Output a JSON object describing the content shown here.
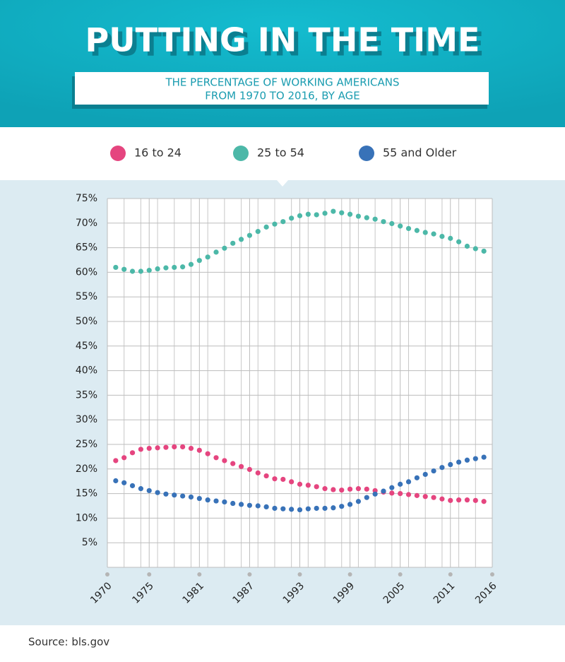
{
  "chart_data": {
    "type": "scatter",
    "title": "PUTTING IN THE TIME",
    "subtitle": [
      "THE PERCENTAGE OF WORKING AMERICANS",
      "FROM 1970 TO 2016, BY AGE"
    ],
    "source": "Source: bls.gov",
    "x": [
      1971,
      1972,
      1973,
      1974,
      1975,
      1976,
      1977,
      1978,
      1979,
      1980,
      1981,
      1982,
      1983,
      1984,
      1985,
      1986,
      1987,
      1988,
      1989,
      1990,
      1991,
      1992,
      1993,
      1994,
      1995,
      1996,
      1997,
      1998,
      1999,
      2000,
      2001,
      2002,
      2003,
      2004,
      2005,
      2006,
      2007,
      2008,
      2009,
      2010,
      2011,
      2012,
      2013,
      2014,
      2015
    ],
    "series": [
      {
        "name": "16 to 24",
        "color": "#e5457f",
        "values": [
          21.7,
          22.3,
          23.3,
          24.0,
          24.2,
          24.3,
          24.4,
          24.5,
          24.5,
          24.2,
          23.8,
          23.1,
          22.3,
          21.7,
          21.1,
          20.5,
          19.9,
          19.2,
          18.6,
          18.0,
          17.9,
          17.4,
          16.9,
          16.7,
          16.4,
          16.0,
          15.8,
          15.7,
          15.9,
          16.0,
          15.9,
          15.6,
          15.3,
          15.1,
          15.0,
          14.8,
          14.6,
          14.4,
          14.2,
          13.9,
          13.6,
          13.7,
          13.7,
          13.6,
          13.4
        ]
      },
      {
        "name": "25 to 54",
        "color": "#4cb8a8",
        "values": [
          61.0,
          60.6,
          60.2,
          60.2,
          60.4,
          60.7,
          60.9,
          61.0,
          61.1,
          61.6,
          62.4,
          63.1,
          64.1,
          64.9,
          65.9,
          66.7,
          67.5,
          68.3,
          69.2,
          69.8,
          70.3,
          71.0,
          71.5,
          71.8,
          71.7,
          72.0,
          72.4,
          72.1,
          71.8,
          71.4,
          71.1,
          70.8,
          70.3,
          69.9,
          69.4,
          68.9,
          68.5,
          68.1,
          67.8,
          67.3,
          66.9,
          66.2,
          65.3,
          64.8,
          64.3
        ]
      },
      {
        "name": "55 and Older",
        "color": "#3872b8",
        "values": [
          17.6,
          17.2,
          16.6,
          16.0,
          15.6,
          15.2,
          14.9,
          14.7,
          14.5,
          14.3,
          14.0,
          13.7,
          13.5,
          13.3,
          13.0,
          12.8,
          12.6,
          12.5,
          12.3,
          12.0,
          11.9,
          11.8,
          11.7,
          11.9,
          12.0,
          12.0,
          12.1,
          12.4,
          12.8,
          13.4,
          14.2,
          14.9,
          15.5,
          16.2,
          16.9,
          17.4,
          18.2,
          18.9,
          19.6,
          20.3,
          20.9,
          21.4,
          21.8,
          22.1,
          22.4
        ]
      }
    ],
    "xlim": [
      1970,
      2016
    ],
    "xticks": [
      1970,
      1975,
      1981,
      1987,
      1993,
      1999,
      2005,
      2011,
      2016
    ],
    "ylim": [
      0,
      75
    ],
    "yticks": [
      {
        "value": 5,
        "label": "5%"
      },
      {
        "value": 10,
        "label": "10%"
      },
      {
        "value": 15,
        "label": "15%"
      },
      {
        "value": 20,
        "label": "20%"
      },
      {
        "value": 25,
        "label": "25%"
      },
      {
        "value": 30,
        "label": "30%"
      },
      {
        "value": 35,
        "label": "35%"
      },
      {
        "value": 40,
        "label": "40%"
      },
      {
        "value": 45,
        "label": "45%"
      },
      {
        "value": 50,
        "label": "50%"
      },
      {
        "value": 55,
        "label": "55%"
      },
      {
        "value": 60,
        "label": "60%"
      },
      {
        "value": 65,
        "label": "65%"
      },
      {
        "value": 70,
        "label": "70%"
      },
      {
        "value": 75,
        "label": "75%"
      }
    ],
    "grid": true,
    "legend": "top"
  }
}
